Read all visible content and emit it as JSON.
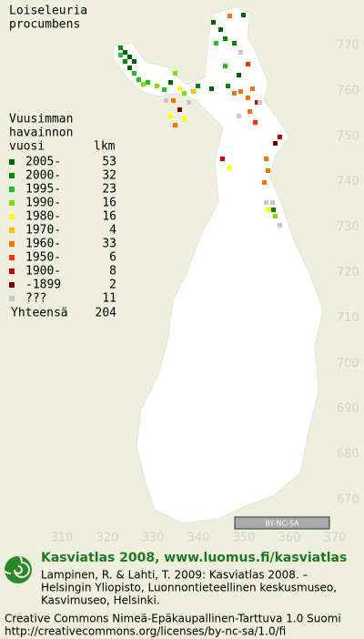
{
  "title": [
    "Loiseleuria",
    "procumbens"
  ],
  "legend": {
    "heading": [
      "Vuusimman",
      "havainnon",
      "vuosi"
    ],
    "count_heading": "lkm",
    "items": [
      {
        "label": "2005-",
        "count": 53,
        "color": "#006400"
      },
      {
        "label": "2000-",
        "count": 32,
        "color": "#008c00"
      },
      {
        "label": "1995-",
        "count": 23,
        "color": "#20c020"
      },
      {
        "label": "1990-",
        "count": 16,
        "color": "#80e000"
      },
      {
        "label": "1980-",
        "count": 16,
        "color": "#ffff00"
      },
      {
        "label": "1970-",
        "count": 4,
        "color": "#ffc000"
      },
      {
        "label": "1960-",
        "count": 33,
        "color": "#ff7000"
      },
      {
        "label": "1950-",
        "count": 6,
        "color": "#ff3000"
      },
      {
        "label": "1900-",
        "count": 8,
        "color": "#d00000"
      },
      {
        "label": "-1899",
        "count": 2,
        "color": "#800000"
      },
      {
        "label": "???",
        "count": 11,
        "color": "#c8c8c8"
      }
    ],
    "total_label": "Yhteensä",
    "total": 204
  },
  "grid": {
    "y_labels": [
      770,
      760,
      750,
      740,
      730,
      720,
      710,
      700,
      690,
      680,
      670
    ],
    "x_labels": [
      310,
      320,
      330,
      340,
      350,
      360,
      370
    ]
  },
  "license_badge": "BY-NC-SA",
  "footer": {
    "heading": "Kasviatlas 2008, www.luomus.fi/kasviatlas",
    "citation": [
      "Lampinen, R. & Lahti, T. 2009: Kasviatlas 2008. –",
      "Helsingin Yliopisto, Luonnontieteellinen keskusmuseo,",
      "Kasvimuseo, Helsinki."
    ],
    "license": [
      "Creative Commons Nimeä-Epäkaupallinen-Tarttuva 1.0 Suomi",
      "http://creativecommons.org/licenses/by-nc-sa/1.0/fi"
    ]
  }
}
